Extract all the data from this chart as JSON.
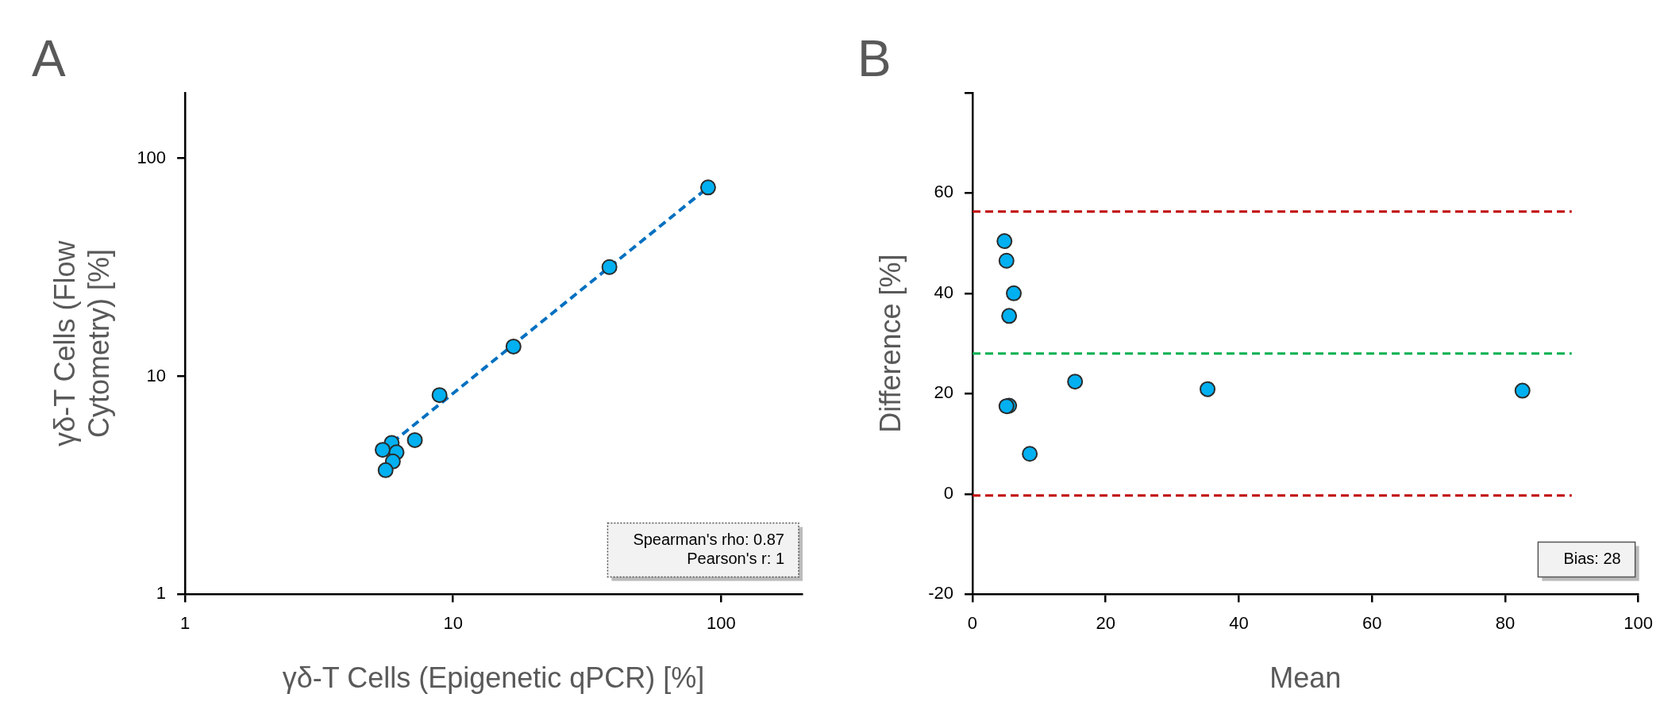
{
  "chart_data": [
    {
      "type": "scatter",
      "title": "A",
      "xlabel": "γδ-T Cells (Epigenetic qPCR) [%]",
      "ylabel": "γδ-T Cells (Flow Cytometry) [%]",
      "log": "xy",
      "xlim": [
        1,
        200
      ],
      "ylim": [
        1,
        200
      ],
      "xticks": [
        1,
        10,
        100
      ],
      "yticks": [
        1,
        10,
        100
      ],
      "grid": false,
      "legend": false,
      "marker": "circle",
      "annotations": [
        "Spearman's rho: 0.87",
        "Pearson's r: 1"
      ],
      "series": [
        {
          "color": "#00b0f0",
          "x": [
            89.4,
            38.3,
            16.8,
            8.9,
            7.2,
            5.9,
            5.46,
            6.15,
            5.96,
            5.6
          ],
          "values": [
            73.5,
            31.7,
            13.7,
            8.2,
            5.1,
            4.95,
            4.6,
            4.48,
            4.07,
            3.71
          ]
        },
        {
          "type": "line",
          "color": "#0070c0",
          "marker": "none",
          "line_style": "dashed",
          "x": [
            5.46,
            89.4
          ],
          "values": [
            4.58,
            73.5
          ]
        }
      ]
    },
    {
      "type": "scatter",
      "title": "B",
      "xlabel": "Mean",
      "ylabel": "Difference [%]",
      "xlim": [
        0,
        100
      ],
      "xticks": [
        0,
        20,
        40,
        60,
        80,
        100
      ],
      "ylim": [
        -20,
        80
      ],
      "yticks": [
        -20,
        0,
        20,
        40,
        60,
        {
          "value": 80,
          "label": null
        }
      ],
      "grid": false,
      "legend": false,
      "marker": "circle",
      "ref_lines": [
        {
          "axis": "y",
          "value": 56.3,
          "color": "#c00000",
          "line_style": "dashed"
        },
        {
          "axis": "y",
          "value": 28,
          "color": "#00b050",
          "line_style": "dashed"
        },
        {
          "axis": "y",
          "value": -0.3,
          "color": "#c00000",
          "line_style": "dashed"
        }
      ],
      "annotations": [
        "Bias: 28"
      ],
      "series": [
        {
          "color": "#00b0f0",
          "x": [
            4.8,
            5.1,
            6.2,
            5.5,
            15.4,
            35.3,
            82.6,
            5.5,
            5.1,
            8.6
          ],
          "values": [
            50.4,
            46.5,
            40.0,
            35.5,
            22.4,
            20.9,
            20.6,
            17.6,
            17.5,
            8.0
          ]
        }
      ]
    }
  ]
}
